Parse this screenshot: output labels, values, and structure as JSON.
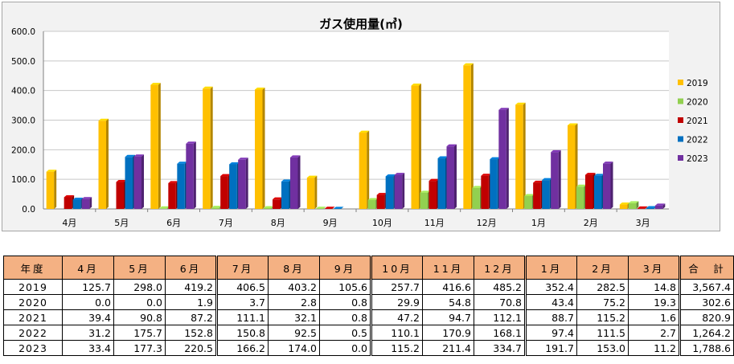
{
  "chart_data": {
    "type": "bar",
    "title": "ガス使用量(㎥)",
    "categories": [
      "4月",
      "5月",
      "6月",
      "7月",
      "8月",
      "9月",
      "10月",
      "11月",
      "12月",
      "1月",
      "2月",
      "3月"
    ],
    "series": [
      {
        "name": "2019",
        "color": "#ffc000",
        "values": [
          125.7,
          298.0,
          419.2,
          406.5,
          403.2,
          105.6,
          257.7,
          416.6,
          485.2,
          352.4,
          282.5,
          14.8
        ]
      },
      {
        "name": "2020",
        "color": "#92d050",
        "values": [
          0.0,
          0.0,
          1.9,
          3.7,
          2.8,
          0.8,
          29.9,
          54.8,
          70.8,
          43.4,
          75.2,
          19.3
        ]
      },
      {
        "name": "2021",
        "color": "#c00000",
        "values": [
          39.4,
          90.8,
          87.2,
          111.1,
          32.1,
          0.8,
          47.2,
          94.7,
          112.1,
          88.7,
          115.2,
          1.6
        ]
      },
      {
        "name": "2022",
        "color": "#0070c0",
        "values": [
          31.2,
          175.7,
          152.8,
          150.8,
          92.5,
          0.5,
          110.1,
          170.9,
          168.1,
          97.4,
          111.5,
          2.7
        ]
      },
      {
        "name": "2023",
        "color": "#7030a0",
        "values": [
          33.4,
          177.3,
          220.5,
          166.2,
          174.0,
          0.0,
          115.2,
          211.4,
          334.7,
          191.7,
          153.0,
          11.2
        ]
      }
    ],
    "ylim": [
      0,
      600
    ],
    "yticks": [
      "0.0",
      "100.0",
      "200.0",
      "300.0",
      "400.0",
      "500.0",
      "600.0"
    ],
    "grid": true,
    "legend": "right"
  },
  "table": {
    "headers": [
      "年度",
      "4月",
      "5月",
      "6月",
      "7月",
      "8月",
      "9月",
      "10月",
      "11月",
      "12月",
      "1月",
      "2月",
      "3月",
      "合　計"
    ],
    "rows": [
      [
        "2019",
        "125.7",
        "298.0",
        "419.2",
        "406.5",
        "403.2",
        "105.6",
        "257.7",
        "416.6",
        "485.2",
        "352.4",
        "282.5",
        "14.8",
        "3,567.4"
      ],
      [
        "2020",
        "0.0",
        "0.0",
        "1.9",
        "3.7",
        "2.8",
        "0.8",
        "29.9",
        "54.8",
        "70.8",
        "43.4",
        "75.2",
        "19.3",
        "302.6"
      ],
      [
        "2021",
        "39.4",
        "90.8",
        "87.2",
        "111.1",
        "32.1",
        "0.8",
        "47.2",
        "94.7",
        "112.1",
        "88.7",
        "115.2",
        "1.6",
        "820.9"
      ],
      [
        "2022",
        "31.2",
        "175.7",
        "152.8",
        "150.8",
        "92.5",
        "0.5",
        "110.1",
        "170.9",
        "168.1",
        "97.4",
        "111.5",
        "2.7",
        "1,264.2"
      ],
      [
        "2023",
        "33.4",
        "177.3",
        "220.5",
        "166.2",
        "174.0",
        "0.0",
        "115.2",
        "211.4",
        "334.7",
        "191.7",
        "153.0",
        "11.2",
        "1,788.6"
      ]
    ]
  }
}
